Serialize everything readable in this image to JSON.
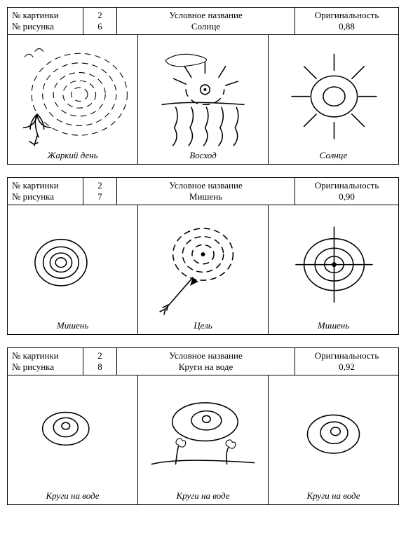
{
  "labels": {
    "pic_no": "№ картинки",
    "draw_no": "№ рисунка",
    "conv_name": "Условное название",
    "originality": "Оригинальность"
  },
  "blocks": [
    {
      "pic_no": "2",
      "draw_no": "6",
      "name": "Солнце",
      "originality": "0,88",
      "cells": [
        {
          "caption": "Жаркий день",
          "sketch": "hotday"
        },
        {
          "caption": "Восход",
          "sketch": "sunrise"
        },
        {
          "caption": "Солнце",
          "sketch": "sun"
        }
      ]
    },
    {
      "pic_no": "2",
      "draw_no": "7",
      "name": "Мишень",
      "originality": "0,90",
      "cells": [
        {
          "caption": "Мишень",
          "sketch": "target1"
        },
        {
          "caption": "Цель",
          "sketch": "target_arrow"
        },
        {
          "caption": "Мишень",
          "sketch": "target_cross"
        }
      ]
    },
    {
      "pic_no": "2",
      "draw_no": "8",
      "name": "Круги на воде",
      "originality": "0,92",
      "cells": [
        {
          "caption": "Круги на воде",
          "sketch": "ripple1"
        },
        {
          "caption": "Круги на воде",
          "sketch": "ripple_flowers"
        },
        {
          "caption": "Круги на воде",
          "sketch": "ripple3"
        }
      ]
    }
  ]
}
